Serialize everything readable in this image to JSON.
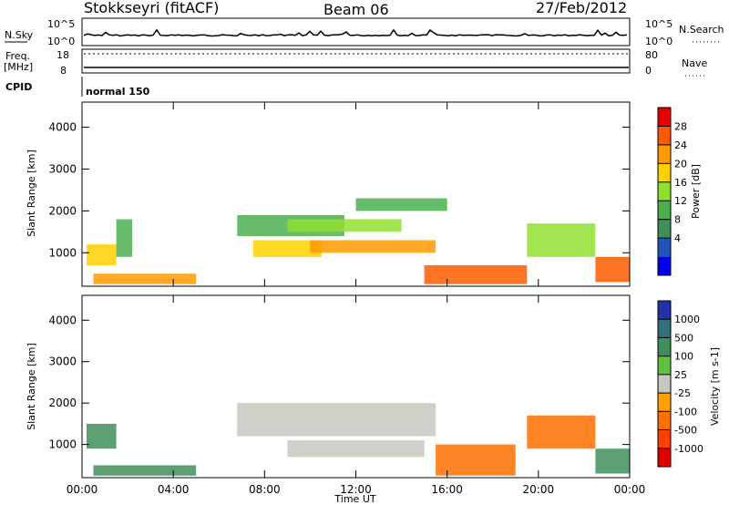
{
  "header": {
    "station": "Stokkseyri (fitACF)",
    "beam": "Beam 06",
    "date": "27/Feb/2012"
  },
  "status_panels": {
    "nsky_label": "N.Sky",
    "nsky_ticks": [
      "10^5",
      "10^0"
    ],
    "nsearch_label": "N.Search",
    "nsearch_ticks": [
      "10^5",
      "10^0"
    ],
    "freq_label_1": "Freq.",
    "freq_label_2": "[MHz]",
    "freq_ticks": [
      "18",
      "8"
    ],
    "nave_label": "Nave",
    "nave_ticks": [
      "80",
      "0"
    ],
    "cpid_label": "CPID",
    "cpid_value": "normal 150"
  },
  "chart_data": [
    {
      "type": "heatmap",
      "name": "power",
      "ylabel": "Slant Range [km]",
      "xlabel": "",
      "y_ticks": [
        "1000",
        "2000",
        "3000",
        "4000"
      ],
      "ylim": [
        200,
        4600
      ],
      "xlim": [
        0,
        24
      ],
      "colorbar_label": "Power [dB]",
      "colorbar_ticks": [
        "28",
        "24",
        "20",
        "16",
        "12",
        "8",
        "4"
      ],
      "colorbar_colors": [
        "#0000ee",
        "#2255bb",
        "#3f8f5a",
        "#4caf50",
        "#90e030",
        "#ffd000",
        "#ff9a00",
        "#ff5a00",
        "#e80000"
      ],
      "colorbar_range": [
        0,
        30
      ],
      "regions": [
        {
          "x": [
            0.2,
            1.5
          ],
          "y": [
            700,
            1200
          ],
          "v": 18
        },
        {
          "x": [
            0.5,
            5.0
          ],
          "y": [
            250,
            500
          ],
          "v": 22
        },
        {
          "x": [
            1.5,
            2.2
          ],
          "y": [
            900,
            1800
          ],
          "v": 12
        },
        {
          "x": [
            6.8,
            11.5
          ],
          "y": [
            1400,
            1900
          ],
          "v": 12
        },
        {
          "x": [
            7.5,
            10.5
          ],
          "y": [
            900,
            1300
          ],
          "v": 18
        },
        {
          "x": [
            9.0,
            14.0
          ],
          "y": [
            1500,
            1800
          ],
          "v": 16
        },
        {
          "x": [
            10.0,
            15.5
          ],
          "y": [
            1000,
            1300
          ],
          "v": 20
        },
        {
          "x": [
            12.0,
            16.0
          ],
          "y": [
            2000,
            2300
          ],
          "v": 12
        },
        {
          "x": [
            15.0,
            19.5
          ],
          "y": [
            250,
            700
          ],
          "v": 26
        },
        {
          "x": [
            19.5,
            22.5
          ],
          "y": [
            900,
            1700
          ],
          "v": 14
        },
        {
          "x": [
            22.5,
            24.0
          ],
          "y": [
            300,
            900
          ],
          "v": 24
        }
      ]
    },
    {
      "type": "heatmap",
      "name": "velocity",
      "ylabel": "Slant Range [km]",
      "xlabel": "Time UT",
      "x_ticks": [
        "00:00",
        "04:00",
        "08:00",
        "12:00",
        "16:00",
        "20:00",
        "00:00"
      ],
      "y_ticks": [
        "1000",
        "2000",
        "3000",
        "4000"
      ],
      "ylim": [
        200,
        4600
      ],
      "xlim": [
        0,
        24
      ],
      "colorbar_label": "Velocity [m s-1]",
      "colorbar_ticks": [
        "1000",
        "500",
        "100",
        "25",
        "-25",
        "-100",
        "-500",
        "-1000"
      ],
      "colorbar_colors": [
        "#2233aa",
        "#2f6f7a",
        "#3f8f5a",
        "#60c040",
        "#c8c8c0",
        "#ffa000",
        "#ff7000",
        "#ff4000",
        "#e00000"
      ],
      "regions": [
        {
          "x": [
            0.2,
            1.5
          ],
          "y": [
            900,
            1500
          ],
          "v": 100
        },
        {
          "x": [
            0.5,
            5.0
          ],
          "y": [
            250,
            500
          ],
          "v": 300
        },
        {
          "x": [
            6.8,
            15.5
          ],
          "y": [
            1200,
            2000
          ],
          "v": 0
        },
        {
          "x": [
            9.0,
            15.0
          ],
          "y": [
            700,
            1100
          ],
          "v": 0
        },
        {
          "x": [
            15.5,
            19.0
          ],
          "y": [
            250,
            1000
          ],
          "v": -200
        },
        {
          "x": [
            19.5,
            22.5
          ],
          "y": [
            900,
            1700
          ],
          "v": -150
        },
        {
          "x": [
            22.5,
            24.0
          ],
          "y": [
            300,
            900
          ],
          "v": 150
        }
      ]
    }
  ]
}
